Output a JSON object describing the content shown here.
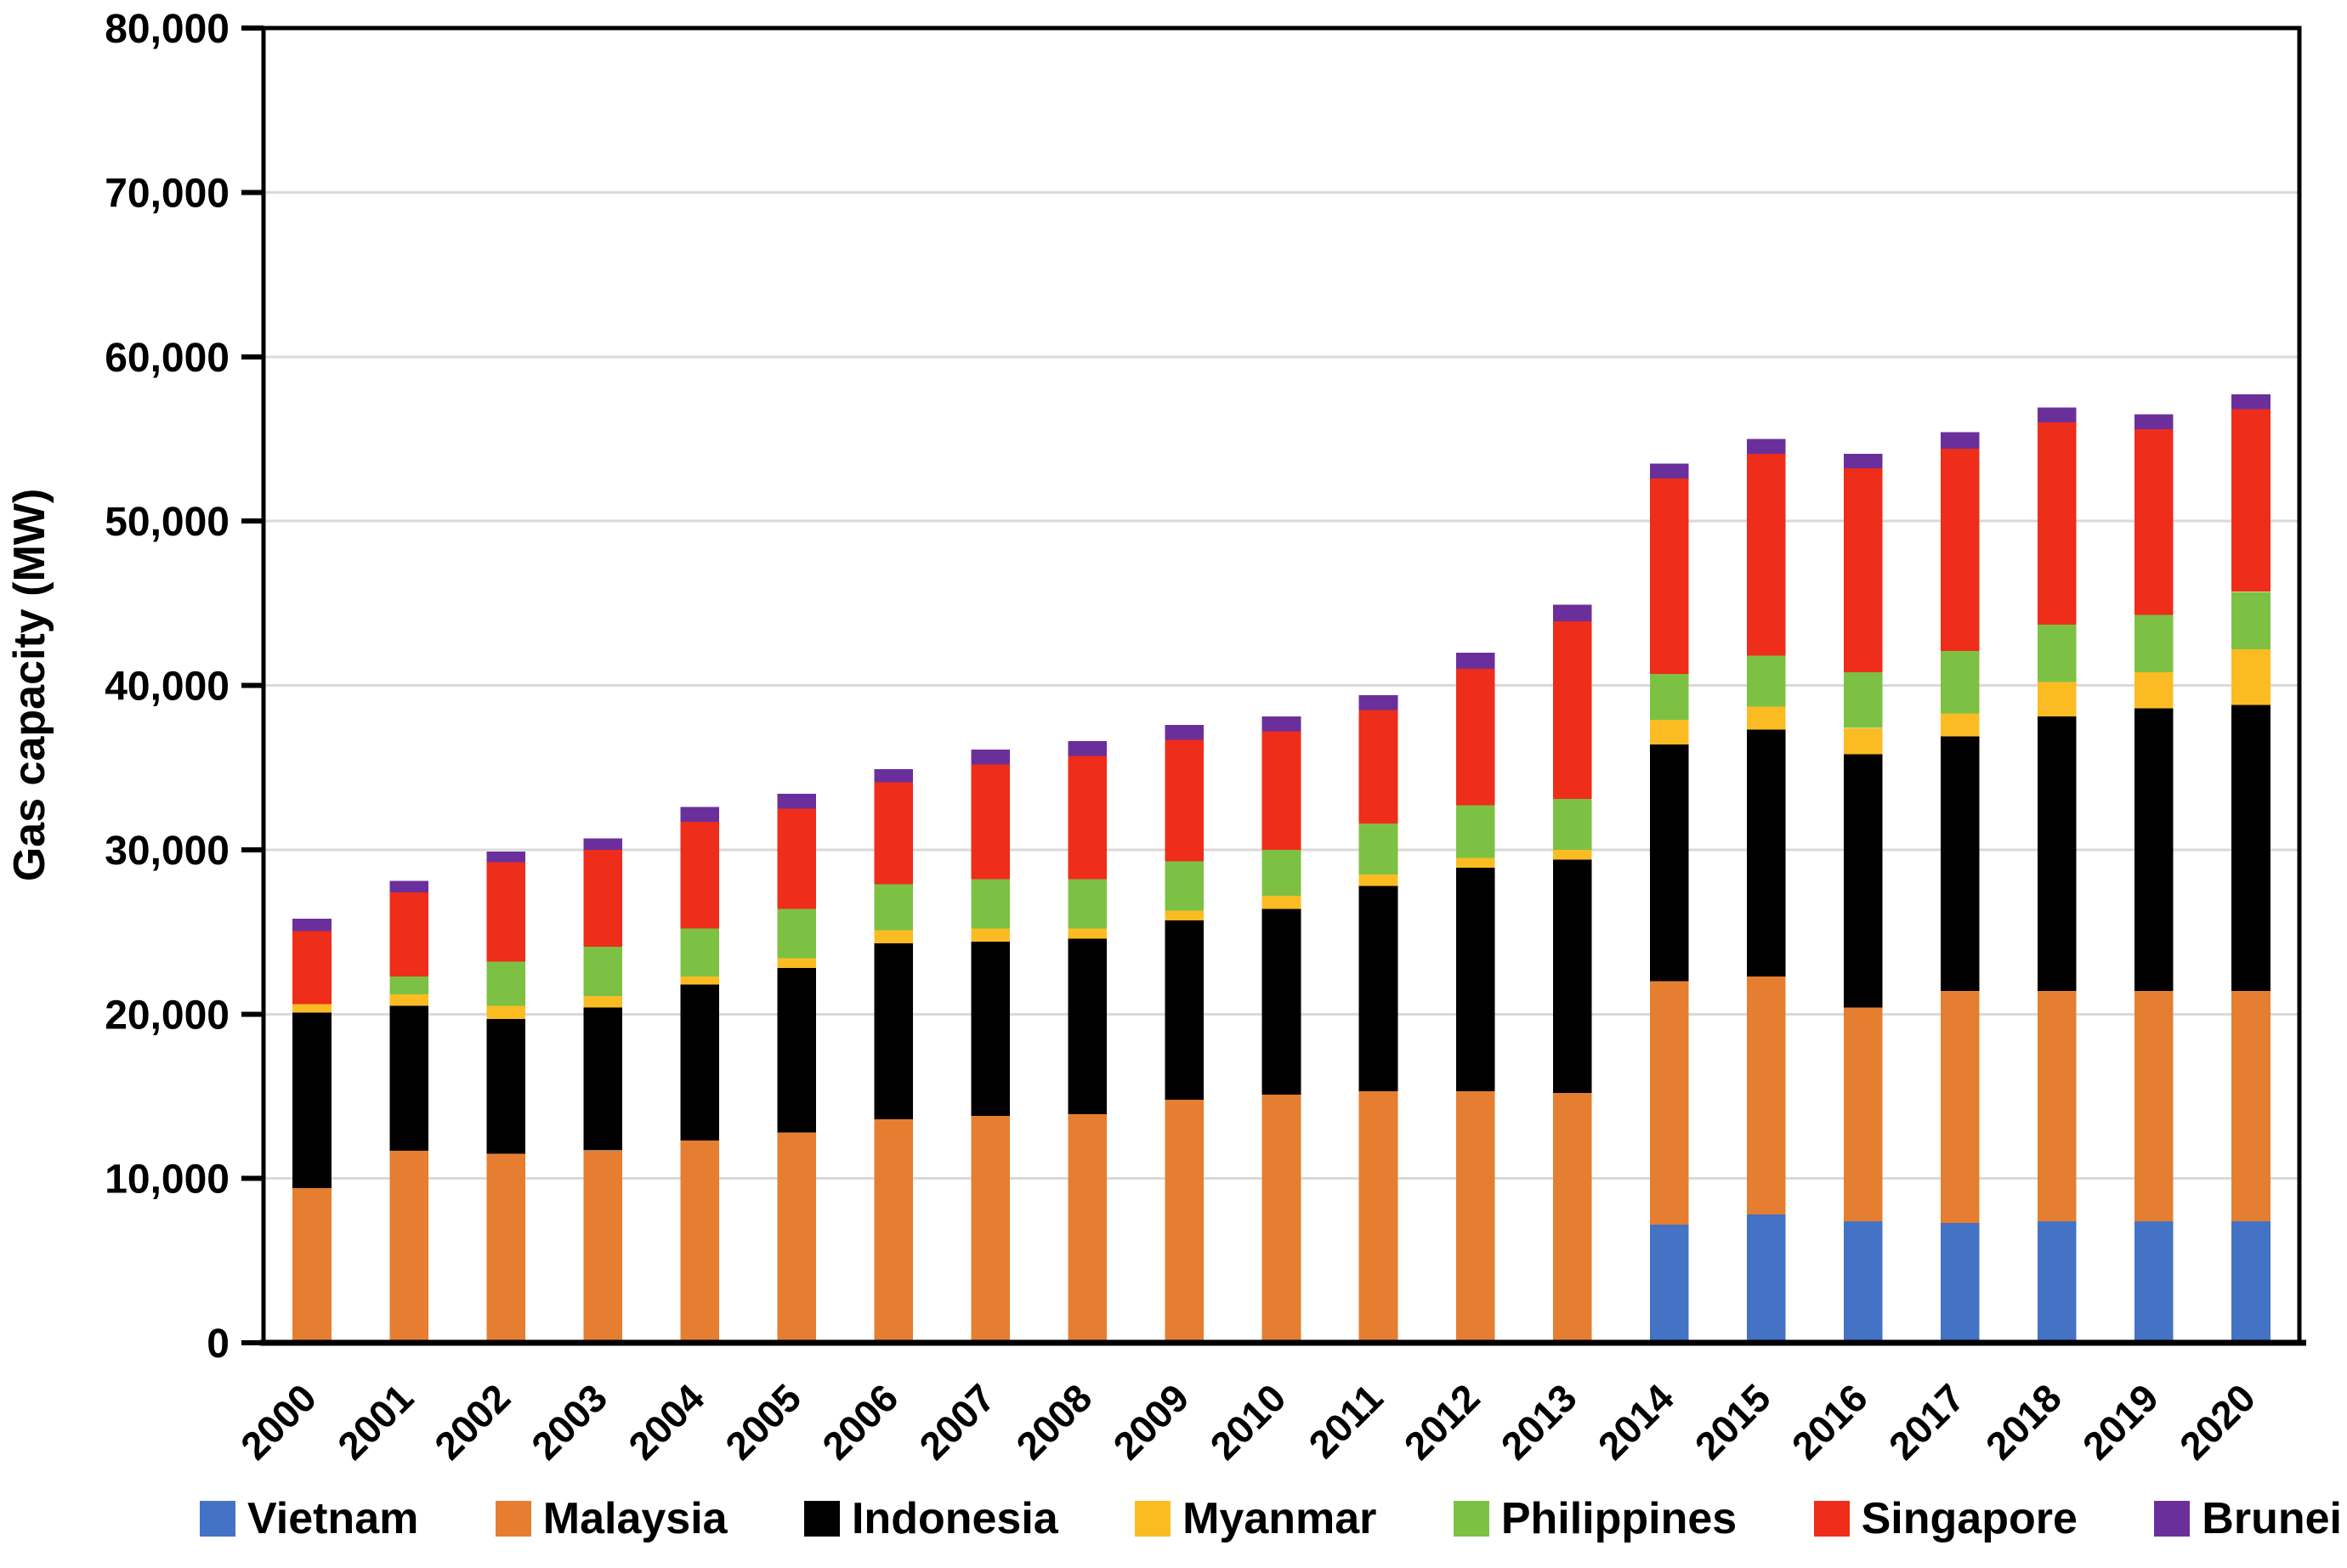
{
  "chart_data": {
    "type": "bar",
    "stacked": true,
    "title": "",
    "xlabel": "",
    "ylabel": "Gas capacity (MW)",
    "ylim": [
      0,
      80000
    ],
    "ytick_interval": 10000,
    "grid": "horizontal",
    "legend_position": "bottom",
    "y_ticks": [
      {
        "value": 0,
        "label": "0"
      },
      {
        "value": 10000,
        "label": "10,000"
      },
      {
        "value": 20000,
        "label": "20,000"
      },
      {
        "value": 30000,
        "label": "30,000"
      },
      {
        "value": 40000,
        "label": "40,000"
      },
      {
        "value": 50000,
        "label": "50,000"
      },
      {
        "value": 60000,
        "label": "60,000"
      },
      {
        "value": 70000,
        "label": "70,000"
      },
      {
        "value": 80000,
        "label": "80,000"
      }
    ],
    "categories": [
      "2000",
      "2001",
      "2002",
      "2003",
      "2004",
      "2005",
      "2006",
      "2007",
      "2008",
      "2009",
      "2010",
      "2011",
      "2012",
      "2013",
      "2014",
      "2015",
      "2016",
      "2017",
      "2018",
      "2019",
      "2020"
    ],
    "series": [
      {
        "name": "Vietnam",
        "color": "#4472C4",
        "values": [
          0,
          0,
          0,
          0,
          0,
          0,
          0,
          0,
          0,
          0,
          0,
          0,
          0,
          0,
          7200,
          7800,
          7400,
          7300,
          7400,
          7400,
          7400
        ]
      },
      {
        "name": "Malaysia",
        "color": "#E57E30",
        "values": [
          9400,
          11700,
          11500,
          11700,
          12300,
          12800,
          13600,
          13800,
          13900,
          14800,
          15100,
          15300,
          15300,
          15200,
          14800,
          14500,
          13000,
          14100,
          14000,
          14000,
          14000
        ]
      },
      {
        "name": "Indonesia",
        "color": "#000000",
        "values": [
          10700,
          8800,
          8200,
          8700,
          9500,
          10000,
          10700,
          10600,
          10700,
          10900,
          11300,
          12500,
          13600,
          14200,
          14400,
          15000,
          15400,
          15500,
          16700,
          17200,
          17400
        ]
      },
      {
        "name": "Myanmar",
        "color": "#FBBC23",
        "values": [
          500,
          700,
          800,
          700,
          500,
          600,
          800,
          800,
          600,
          600,
          800,
          700,
          600,
          600,
          1500,
          1400,
          1600,
          1400,
          2100,
          2200,
          3400
        ]
      },
      {
        "name": "Philippines",
        "color": "#7DC144",
        "values": [
          0,
          1100,
          2700,
          3000,
          2900,
          3000,
          2800,
          3000,
          3000,
          3000,
          2800,
          3100,
          3200,
          3100,
          2800,
          3100,
          3400,
          3800,
          3500,
          3500,
          3500
        ]
      },
      {
        "name": "Singapore",
        "color": "#EE2D1A",
        "values": [
          4450,
          5100,
          6050,
          5900,
          6500,
          6100,
          6200,
          7000,
          7500,
          7400,
          7200,
          6900,
          8300,
          10800,
          11900,
          12300,
          12400,
          12300,
          12300,
          11300,
          11100
        ]
      },
      {
        "name": "Brunei",
        "color": "#6B2F9C",
        "values": [
          750,
          700,
          650,
          700,
          900,
          900,
          800,
          900,
          900,
          900,
          900,
          900,
          1000,
          1000,
          900,
          900,
          900,
          1000,
          900,
          900,
          900
        ]
      }
    ],
    "colors": {
      "gridline": "#D9D9D9",
      "axis": "#000000",
      "background": "#FFFFFF"
    }
  }
}
